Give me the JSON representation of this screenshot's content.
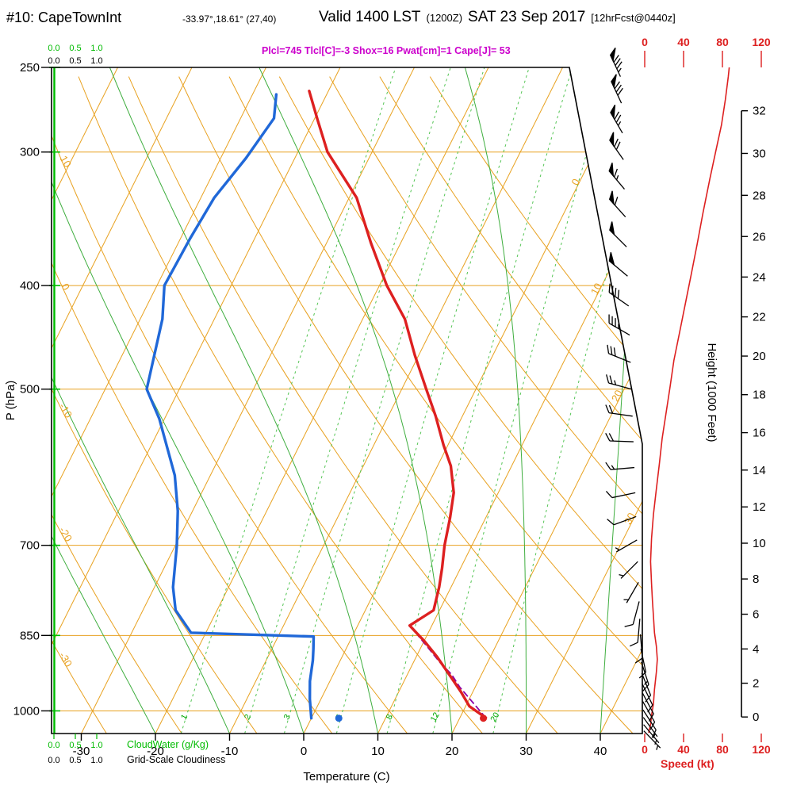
{
  "header": {
    "station": "#10: CapeTownInt",
    "coords": "-33.97°,18.61° (27,40)",
    "valid": "Valid 1400 LST",
    "valid_z": "(1200Z)",
    "valid_date": "SAT 23 Sep 2017",
    "fcst": "[12hrFcst@0440z]",
    "indices": "Plcl=745 Tlcl[C]=-3 Shox=16 Pwat[cm]=1 Cape[J]= 53"
  },
  "axes": {
    "pressure_label": "P (hPa)",
    "pressure_ticks": [
      250,
      300,
      400,
      500,
      700,
      850,
      1000
    ],
    "temp_label": "Temperature (C)",
    "temp_ticks": [
      -30,
      -20,
      -10,
      0,
      10,
      20,
      30,
      40
    ],
    "height_label": "Height (1000 Feet)",
    "height_ticks": [
      0,
      2,
      4,
      6,
      8,
      10,
      12,
      14,
      16,
      18,
      20,
      22,
      24,
      26,
      28,
      30,
      32
    ],
    "speed_label": "Speed (kt)",
    "speed_ticks": [
      0,
      40,
      80,
      120
    ],
    "cloud_scale": [
      "0.0",
      "0.5",
      "1.0"
    ],
    "cloudwater_label": "CloudWater (g/Kg)",
    "cloudiness_label": "Grid-Scale Cloudiness"
  },
  "colors": {
    "orange": "#E8A120",
    "green": "#3FAE3F",
    "green_dash": "#52C452",
    "green_label": "#00A800",
    "cloud_green": "#00BB00",
    "red": "#DD2020",
    "blue": "#2068D8",
    "purple": "#8B00A8",
    "magenta": "#CC00CC"
  },
  "chart_data": {
    "type": "skewt",
    "pressure_range_hPa": [
      250,
      1050
    ],
    "isotherm_labels": [
      0,
      10,
      20,
      30
    ],
    "dry_adiabat_labels": [
      10,
      0,
      -10,
      -20,
      -30
    ],
    "mixing_ratio_labels": [
      1,
      2,
      3,
      5,
      8,
      12,
      20
    ],
    "temperature_C": [
      [
        1015,
        23.5
      ],
      [
        990,
        20.5
      ],
      [
        960,
        18.4
      ],
      [
        938,
        16.7
      ],
      [
        890,
        12.8
      ],
      [
        860,
        10.0
      ],
      [
        846,
        8.5
      ],
      [
        832,
        7.0
      ],
      [
        805,
        9.2
      ],
      [
        766,
        8.4
      ],
      [
        735,
        7.5
      ],
      [
        700,
        6.3
      ],
      [
        660,
        5.2
      ],
      [
        625,
        4.0
      ],
      [
        590,
        1.8
      ],
      [
        564,
        -0.6
      ],
      [
        530,
        -3.6
      ],
      [
        500,
        -6.7
      ],
      [
        465,
        -10.5
      ],
      [
        430,
        -14.3
      ],
      [
        400,
        -19.0
      ],
      [
        365,
        -24.0
      ],
      [
        331,
        -29.0
      ],
      [
        300,
        -36.0
      ],
      [
        280,
        -39.5
      ],
      [
        263,
        -42.6
      ]
    ],
    "dewpoint_C": [
      [
        1016,
        0.0
      ],
      [
        975,
        -1.5
      ],
      [
        938,
        -2.7
      ],
      [
        897,
        -3.7
      ],
      [
        875,
        -4.4
      ],
      [
        852,
        -5.2
      ],
      [
        845,
        -22.0
      ],
      [
        805,
        -25.6
      ],
      [
        766,
        -27.5
      ],
      [
        700,
        -29.8
      ],
      [
        650,
        -32.0
      ],
      [
        602,
        -34.8
      ],
      [
        533,
        -40.7
      ],
      [
        500,
        -44.4
      ],
      [
        430,
        -47.0
      ],
      [
        400,
        -49.0
      ],
      [
        361,
        -48.7
      ],
      [
        331,
        -48.2
      ],
      [
        304,
        -46.6
      ],
      [
        279,
        -45.5
      ],
      [
        265,
        -46.8
      ]
    ],
    "parcel_path": [
      [
        1015,
        23.5
      ],
      [
        990,
        21.4
      ],
      [
        950,
        17.9
      ],
      [
        925,
        16.0
      ],
      [
        900,
        13.5
      ],
      [
        875,
        11.2
      ],
      [
        850,
        8.8
      ],
      [
        832,
        7.1
      ]
    ],
    "surface_dots": {
      "pressure": 1016,
      "temperature": 23.2,
      "dewpoint": 3.7
    },
    "wind_barbs": [
      [
        255,
        335,
        85
      ],
      [
        270,
        335,
        80
      ],
      [
        288,
        330,
        75
      ],
      [
        305,
        325,
        70
      ],
      [
        325,
        320,
        65
      ],
      [
        345,
        318,
        58
      ],
      [
        368,
        315,
        52
      ],
      [
        392,
        310,
        48
      ],
      [
        418,
        305,
        42
      ],
      [
        445,
        300,
        36
      ],
      [
        472,
        292,
        30
      ],
      [
        500,
        285,
        26
      ],
      [
        530,
        278,
        22
      ],
      [
        560,
        272,
        18
      ],
      [
        592,
        265,
        15
      ],
      [
        625,
        258,
        12
      ],
      [
        658,
        250,
        9
      ],
      [
        692,
        240,
        7
      ],
      [
        725,
        225,
        6
      ],
      [
        758,
        210,
        7
      ],
      [
        790,
        195,
        8
      ],
      [
        820,
        185,
        9
      ],
      [
        848,
        175,
        10
      ],
      [
        875,
        168,
        12
      ],
      [
        900,
        162,
        13
      ],
      [
        922,
        158,
        12
      ],
      [
        943,
        154,
        11
      ],
      [
        962,
        152,
        10
      ],
      [
        980,
        150,
        9
      ],
      [
        998,
        147,
        8
      ],
      [
        1014,
        144,
        7
      ],
      [
        1030,
        140,
        6
      ],
      [
        1044,
        136,
        5
      ]
    ],
    "wind_speed_profile": [
      [
        1048,
        4
      ],
      [
        1030,
        6
      ],
      [
        1010,
        7
      ],
      [
        985,
        9
      ],
      [
        955,
        10
      ],
      [
        920,
        12
      ],
      [
        895,
        13
      ],
      [
        870,
        12
      ],
      [
        845,
        10
      ],
      [
        815,
        9
      ],
      [
        790,
        8
      ],
      [
        760,
        7
      ],
      [
        725,
        6
      ],
      [
        690,
        7
      ],
      [
        655,
        9
      ],
      [
        620,
        12
      ],
      [
        588,
        15
      ],
      [
        556,
        18
      ],
      [
        526,
        22
      ],
      [
        498,
        26
      ],
      [
        470,
        30
      ],
      [
        442,
        36
      ],
      [
        415,
        42
      ],
      [
        390,
        48
      ],
      [
        366,
        54
      ],
      [
        342,
        60
      ],
      [
        318,
        67
      ],
      [
        300,
        73
      ],
      [
        283,
        79
      ],
      [
        268,
        83
      ],
      [
        255,
        86
      ],
      [
        250,
        87
      ]
    ],
    "cloud_water_gkg": 0,
    "grid_scale_cloudiness": 0
  }
}
